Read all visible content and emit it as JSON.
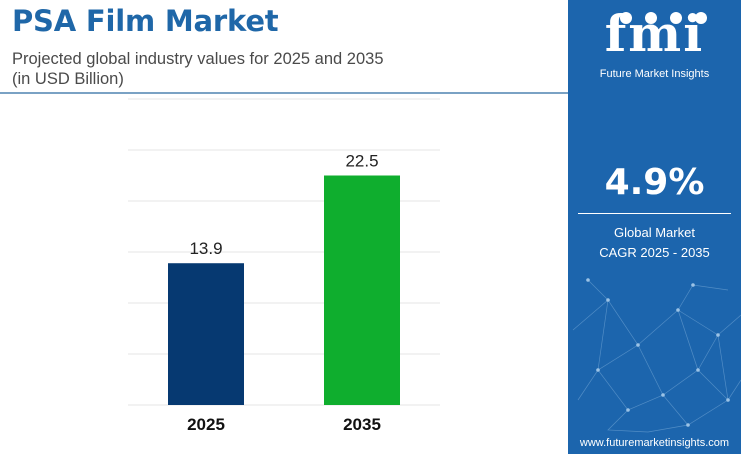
{
  "header": {
    "title": "PSA Film Market",
    "subtitle_line1": "Projected global industry values for 2025 and 2035",
    "subtitle_line2": "(in USD Billion)"
  },
  "panel": {
    "logo_mark": "fmi",
    "logo_text": "Future Market Insights",
    "cagr_value": "4.9%",
    "cagr_label_line1": "Global Market",
    "cagr_label_line2": "CAGR 2025 - 2035",
    "source_url": "www.futuremarketinsights.com"
  },
  "colors": {
    "title": "#1f67a8",
    "panel_bg": "#1c65ad",
    "bar_2025": "#063971",
    "bar_2035": "#0fae2e",
    "gridline": "#e6e6e6"
  },
  "chart_data": {
    "type": "bar",
    "categories": [
      "2025",
      "2035"
    ],
    "values": [
      13.9,
      22.5
    ],
    "data_labels": [
      "13.9",
      "22.5"
    ],
    "colors": [
      "#063971",
      "#0fae2e"
    ],
    "title": "PSA Film Market",
    "ylim": [
      0,
      30
    ],
    "grid": true,
    "legend": "none"
  }
}
